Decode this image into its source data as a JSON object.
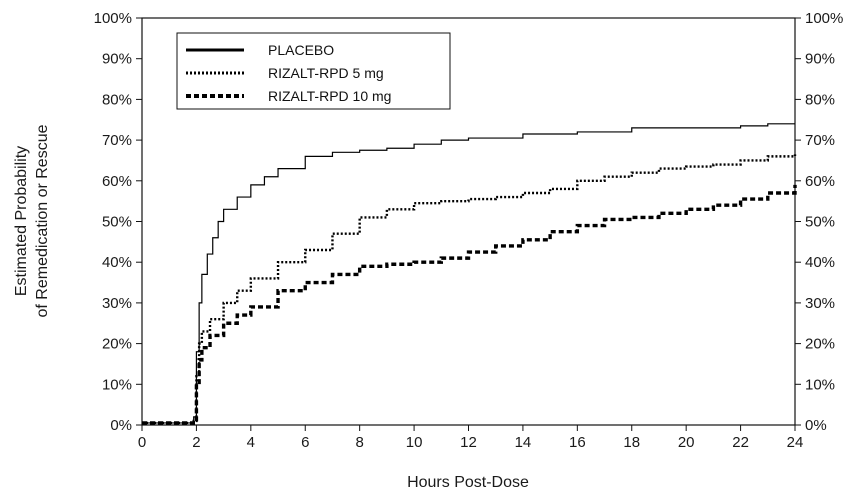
{
  "chart_data": {
    "type": "line",
    "xlabel": "Hours Post-Dose",
    "ylabel": [
      "Estimated Probability",
      "of Remedication or Rescue"
    ],
    "xlim": [
      0,
      24
    ],
    "ylim": [
      0,
      100
    ],
    "x_ticks": [
      0,
      2,
      4,
      6,
      8,
      10,
      12,
      14,
      16,
      18,
      20,
      22,
      24
    ],
    "y_ticks": [
      0,
      10,
      20,
      30,
      40,
      50,
      60,
      70,
      80,
      90,
      100
    ],
    "y_tick_labels": [
      "0%",
      "10%",
      "20%",
      "30%",
      "40%",
      "50%",
      "60%",
      "70%",
      "80%",
      "90%",
      "100%"
    ],
    "right_axis_labels": true,
    "grid": false,
    "legend_position": "top-left",
    "series": [
      {
        "name": "PLACEBO",
        "style": "solid",
        "color": "#000000",
        "x": [
          0,
          1.5,
          1.9,
          2.0,
          2.1,
          2.2,
          2.4,
          2.6,
          2.8,
          3.0,
          3.5,
          4.0,
          4.5,
          5.0,
          6.0,
          7.0,
          8.0,
          9.0,
          10.0,
          11.0,
          12.0,
          14.0,
          16.0,
          18.0,
          20.0,
          22.0,
          23.0,
          24.0
        ],
        "y": [
          0.5,
          0.5,
          2,
          18,
          30,
          37,
          42,
          46,
          50,
          53,
          56,
          59,
          61,
          63,
          66,
          67,
          67.5,
          68,
          69,
          70,
          70.5,
          71.5,
          72,
          73,
          73,
          73.5,
          74,
          74
        ]
      },
      {
        "name": "RIZALT-RPD 5 mg",
        "style": "dotted",
        "color": "#000000",
        "x": [
          0,
          1.5,
          1.9,
          2.0,
          2.1,
          2.2,
          2.5,
          3.0,
          3.5,
          4.0,
          5.0,
          6.0,
          7.0,
          8.0,
          9.0,
          10.0,
          11.0,
          12.0,
          13.0,
          14.0,
          15.0,
          16.0,
          17.0,
          18.0,
          19.0,
          20.0,
          21.0,
          22.0,
          23.0,
          24.0
        ],
        "y": [
          0.5,
          0.5,
          1,
          12,
          20,
          23,
          26,
          30,
          33,
          36,
          40,
          43,
          47,
          51,
          53,
          54.5,
          55,
          55.5,
          56,
          57,
          58,
          60,
          61,
          62,
          63,
          63.5,
          64,
          65,
          66,
          66.5
        ]
      },
      {
        "name": "RIZALT-RPD 10 mg",
        "style": "dashed",
        "color": "#000000",
        "x": [
          0,
          1.5,
          1.9,
          2.0,
          2.1,
          2.2,
          2.5,
          3.0,
          3.5,
          4.0,
          5.0,
          6.0,
          7.0,
          8.0,
          9.0,
          10.0,
          11.0,
          12.0,
          13.0,
          14.0,
          15.0,
          16.0,
          17.0,
          18.0,
          19.0,
          20.0,
          21.0,
          22.0,
          23.0,
          24.0
        ],
        "y": [
          0.5,
          0.5,
          0.5,
          10,
          16,
          19,
          22,
          25,
          27,
          29,
          33,
          35,
          37,
          39,
          39.5,
          40,
          41,
          42.5,
          44,
          45.5,
          47.5,
          49,
          50.5,
          51,
          52,
          53,
          54,
          55.5,
          57,
          59
        ]
      }
    ]
  }
}
